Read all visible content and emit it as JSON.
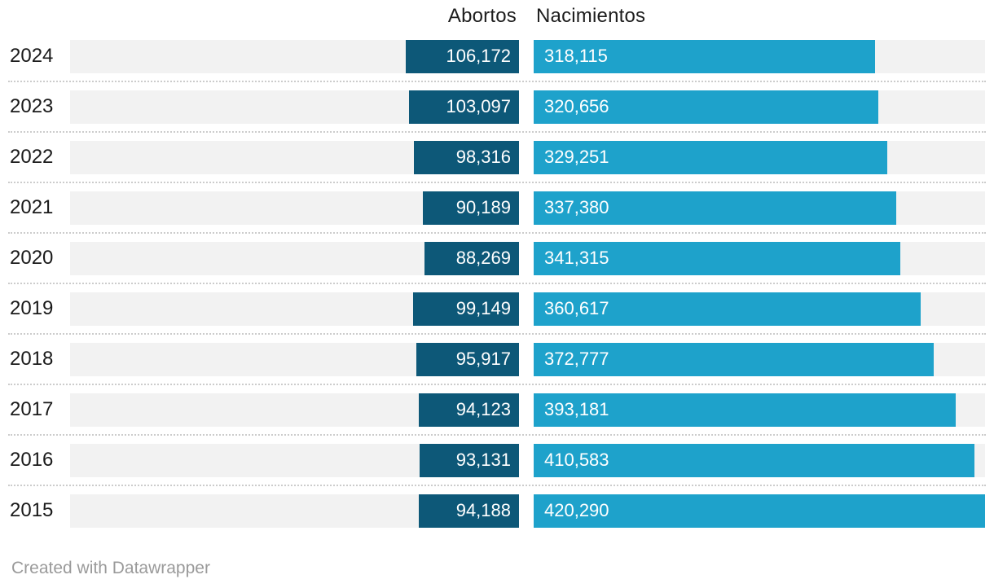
{
  "header": {
    "left": "Abortos",
    "right": "Nacimientos"
  },
  "footer": {
    "attribution": "Created with Datawrapper"
  },
  "colors": {
    "abortos_bar": "#0d5878",
    "nacimientos_bar": "#1ea2cb",
    "track": "#f2f2f2",
    "separator": "#cccccc",
    "year_text": "#1a1a1a",
    "header_text": "#1d1d1d",
    "bar_text": "#ffffff",
    "footer_text": "#9a9a9a"
  },
  "chart_data": {
    "type": "bar",
    "orientation": "horizontal-diverging",
    "categories": [
      "2024",
      "2023",
      "2022",
      "2021",
      "2020",
      "2019",
      "2018",
      "2017",
      "2016",
      "2015"
    ],
    "series": [
      {
        "name": "Abortos",
        "values": [
          106172,
          103097,
          98316,
          90189,
          88269,
          99149,
          95917,
          94123,
          93131,
          94188
        ],
        "labels": [
          "106,172",
          "103,097",
          "98,316",
          "90,189",
          "88,269",
          "99,149",
          "95,917",
          "94,123",
          "93,131",
          "94,188"
        ],
        "color": "#0d5878",
        "align": "right"
      },
      {
        "name": "Nacimientos",
        "values": [
          318115,
          320656,
          329251,
          337380,
          341315,
          360617,
          372777,
          393181,
          410583,
          420290
        ],
        "labels": [
          "318,115",
          "320,656",
          "329,251",
          "337,380",
          "341,315",
          "360,617",
          "372,777",
          "393,181",
          "410,583",
          "420,290"
        ],
        "color": "#1ea2cb",
        "align": "left"
      }
    ],
    "xmax": 420290,
    "grid": false,
    "value_labels": "inside",
    "legend_position": "top-column-headers",
    "title": "",
    "xlabel": "",
    "ylabel": ""
  }
}
